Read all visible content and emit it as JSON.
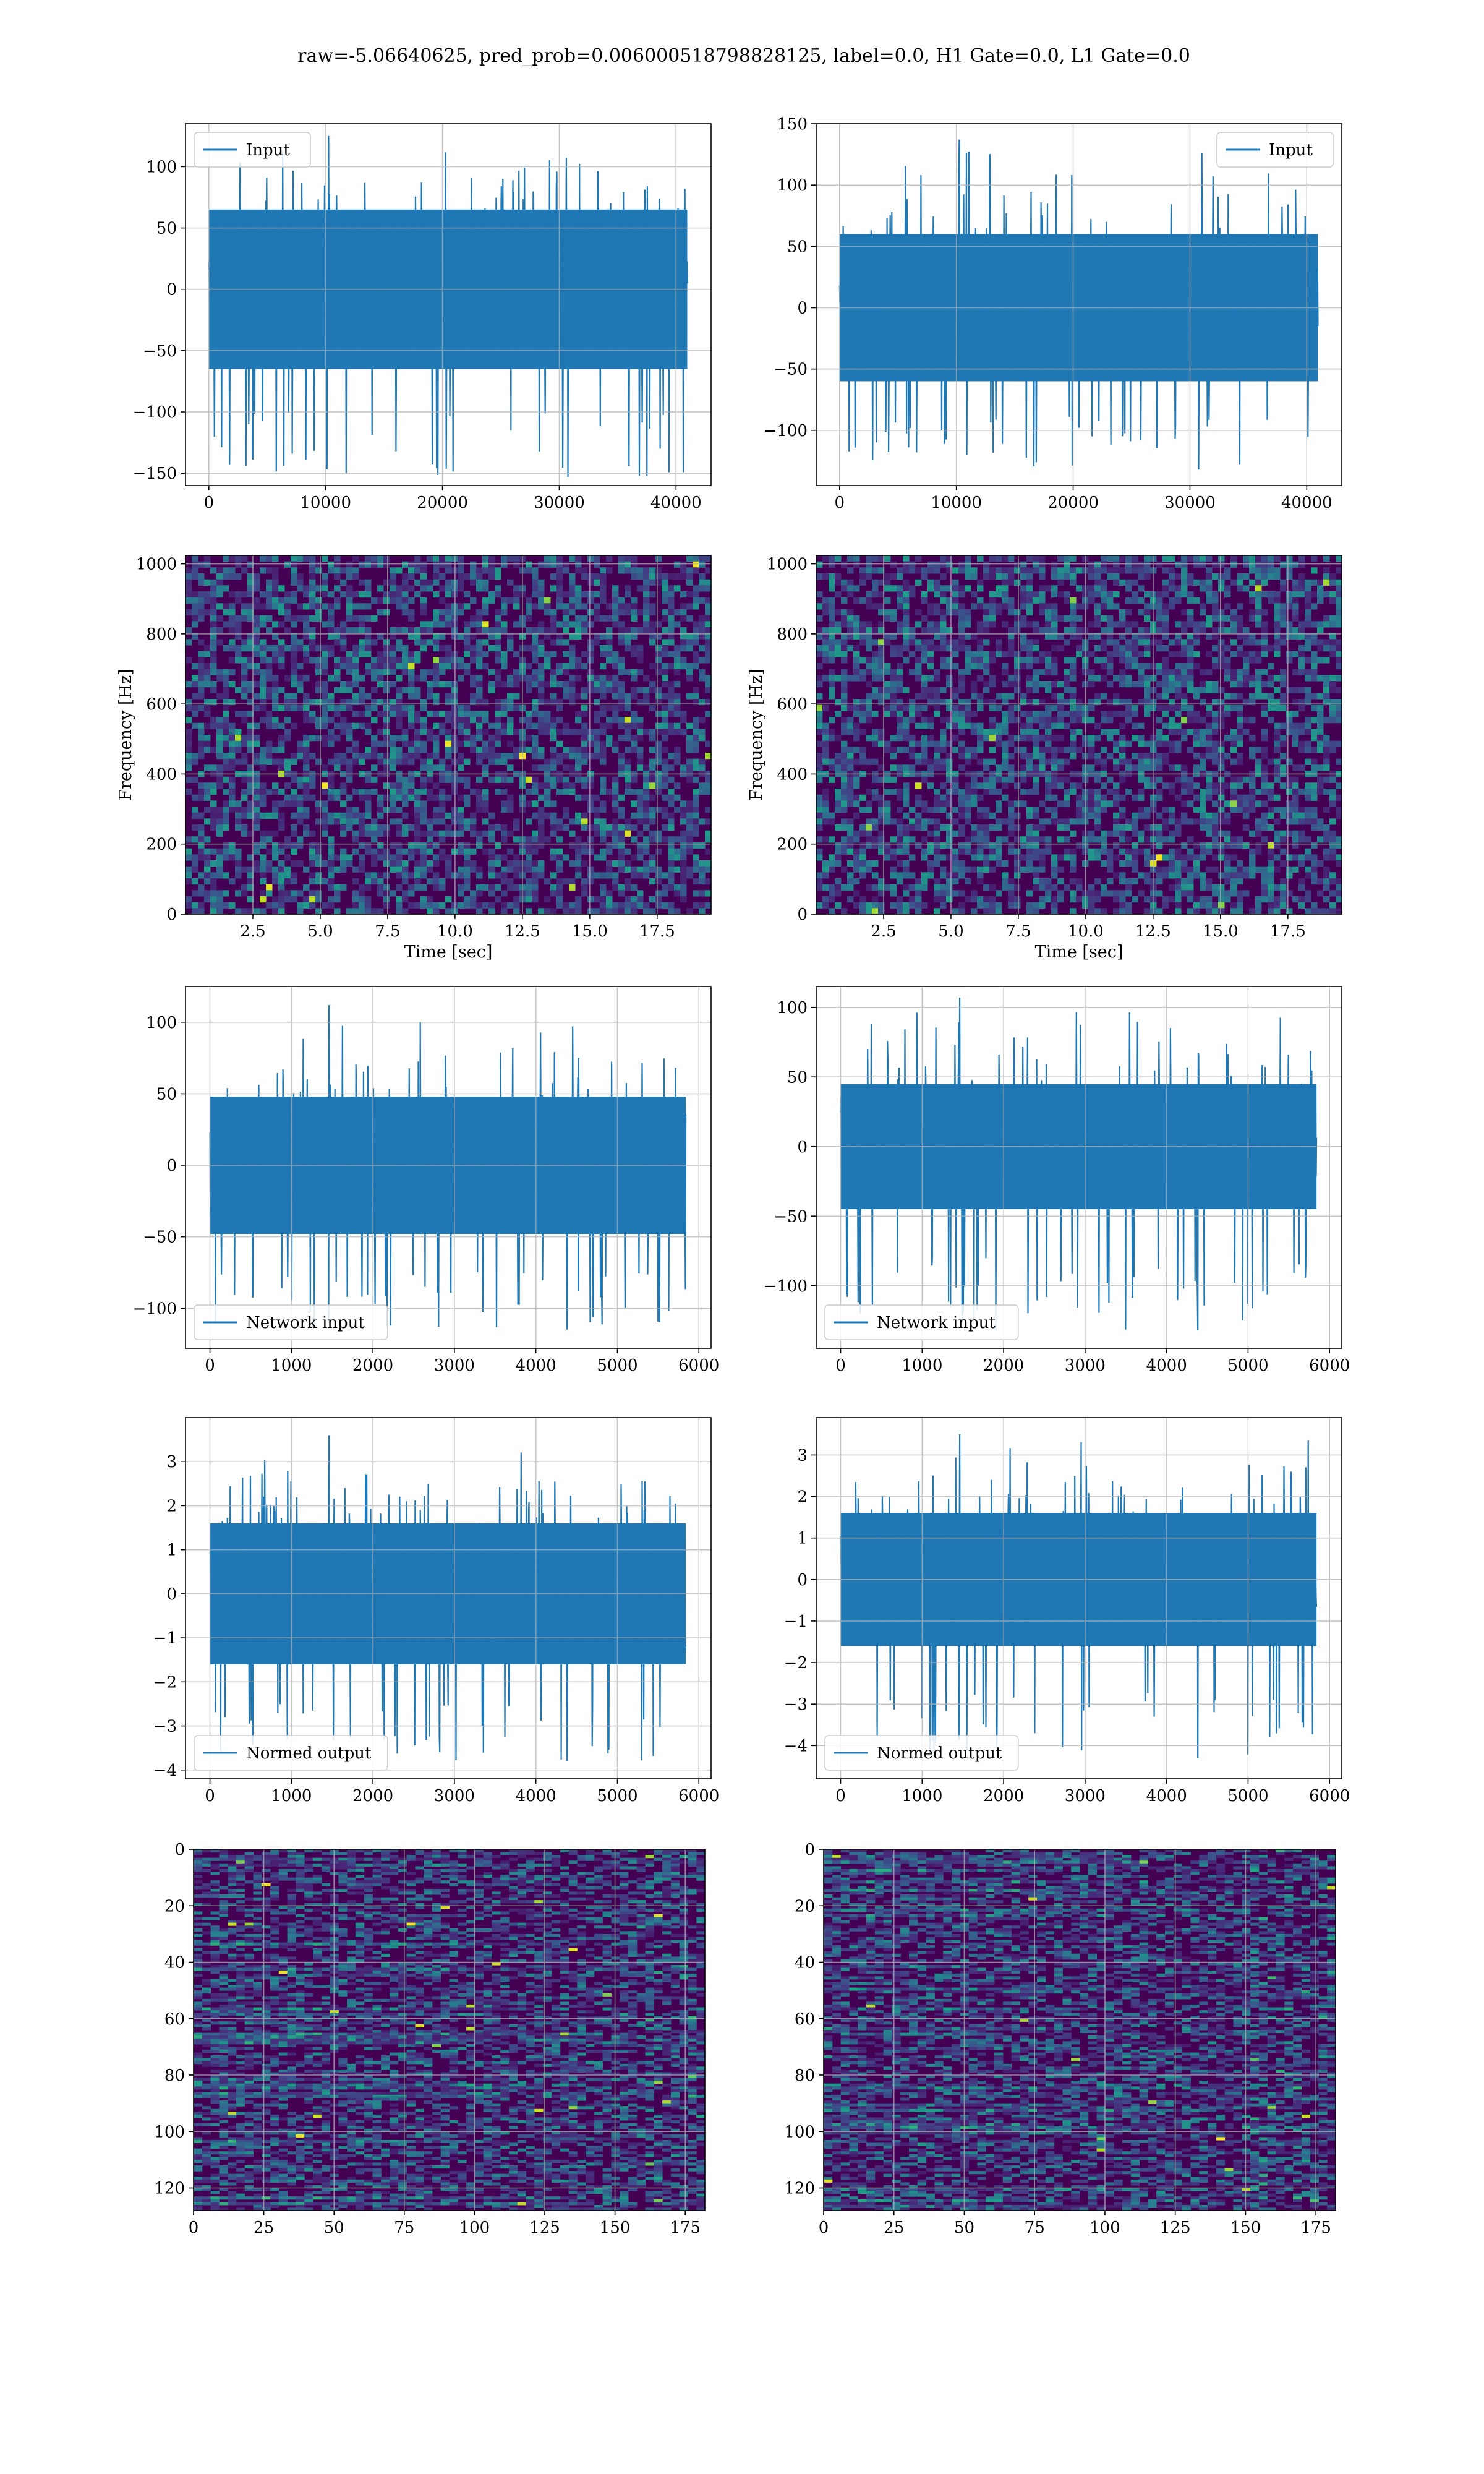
{
  "title": "raw=-5.06640625, pred_prob=0.006000518798828125, label=0.0, H1 Gate=0.0, L1 Gate=0.0",
  "colors": {
    "line": "#1f77b4",
    "grid": "#b0b0b0",
    "viridis_dark": "#440154",
    "viridis_mid": "#31688e",
    "viridis_green": "#35b779",
    "viridis_yellow": "#fde725"
  },
  "chart_data": [
    {
      "type": "line",
      "position": "row1-left",
      "title": "",
      "xlabel": "",
      "ylabel": "",
      "series": [
        {
          "name": "Input",
          "n_samples": 40960,
          "envelope": [
            -65,
            65
          ],
          "peak_max": 125,
          "peak_min": -153
        }
      ],
      "xlim": [
        -2000,
        43000
      ],
      "ylim": [
        -160,
        135
      ],
      "xticks": [
        0,
        10000,
        20000,
        30000,
        40000
      ],
      "yticks": [
        -150,
        -100,
        -50,
        0,
        50,
        100
      ],
      "legend": "top-left",
      "grid": true
    },
    {
      "type": "line",
      "position": "row1-right",
      "title": "",
      "xlabel": "",
      "ylabel": "",
      "series": [
        {
          "name": "Input",
          "n_samples": 40960,
          "envelope": [
            -60,
            60
          ],
          "peak_max": 137,
          "peak_min": -132
        }
      ],
      "xlim": [
        -2000,
        43000
      ],
      "ylim": [
        -145,
        150
      ],
      "xticks": [
        0,
        10000,
        20000,
        30000,
        40000
      ],
      "yticks": [
        -100,
        -50,
        0,
        50,
        100,
        150
      ],
      "legend": "top-right",
      "grid": true
    },
    {
      "type": "heatmap",
      "position": "row2-left",
      "title": "",
      "xlabel": "Time [sec]",
      "ylabel": "Frequency [Hz]",
      "xlim": [
        0,
        19.5
      ],
      "ylim": [
        0,
        1024
      ],
      "xticks": [
        2.5,
        5.0,
        7.5,
        10.0,
        12.5,
        15.0,
        17.5
      ],
      "yticks": [
        0,
        200,
        400,
        600,
        800,
        1000
      ],
      "colormap": "viridis",
      "grid": true
    },
    {
      "type": "heatmap",
      "position": "row2-right",
      "title": "",
      "xlabel": "Time [sec]",
      "ylabel": "Frequency [Hz]",
      "xlim": [
        0,
        19.5
      ],
      "ylim": [
        0,
        1024
      ],
      "xticks": [
        2.5,
        5.0,
        7.5,
        10.0,
        12.5,
        15.0,
        17.5
      ],
      "yticks": [
        0,
        200,
        400,
        600,
        800,
        1000
      ],
      "colormap": "viridis",
      "grid": true
    },
    {
      "type": "line",
      "position": "row3-left",
      "title": "",
      "xlabel": "",
      "ylabel": "",
      "series": [
        {
          "name": "Network input",
          "n_samples": 5840,
          "envelope": [
            -48,
            48
          ],
          "peak_max": 112,
          "peak_min": -115
        }
      ],
      "xlim": [
        -300,
        6150
      ],
      "ylim": [
        -128,
        125
      ],
      "xticks": [
        0,
        1000,
        2000,
        3000,
        4000,
        5000,
        6000
      ],
      "yticks": [
        -100,
        -50,
        0,
        50,
        100
      ],
      "legend": "bottom-left",
      "grid": true
    },
    {
      "type": "line",
      "position": "row3-right",
      "title": "",
      "xlabel": "",
      "ylabel": "",
      "series": [
        {
          "name": "Network input",
          "n_samples": 5840,
          "envelope": [
            -45,
            45
          ],
          "peak_max": 107,
          "peak_min": -132
        }
      ],
      "xlim": [
        -300,
        6150
      ],
      "ylim": [
        -145,
        115
      ],
      "xticks": [
        0,
        1000,
        2000,
        3000,
        4000,
        5000,
        6000
      ],
      "yticks": [
        -100,
        -50,
        0,
        50,
        100
      ],
      "legend": "bottom-left",
      "grid": true
    },
    {
      "type": "line",
      "position": "row4-left",
      "title": "",
      "xlabel": "",
      "ylabel": "",
      "series": [
        {
          "name": "Normed output",
          "n_samples": 5840,
          "envelope": [
            -1.6,
            1.6
          ],
          "peak_max": 3.6,
          "peak_min": -3.8
        }
      ],
      "xlim": [
        -300,
        6150
      ],
      "ylim": [
        -4.2,
        4.0
      ],
      "xticks": [
        0,
        1000,
        2000,
        3000,
        4000,
        5000,
        6000
      ],
      "yticks": [
        -4,
        -3,
        -2,
        -1,
        0,
        1,
        2,
        3
      ],
      "legend": "bottom-left",
      "grid": true
    },
    {
      "type": "line",
      "position": "row4-right",
      "title": "",
      "xlabel": "",
      "ylabel": "",
      "series": [
        {
          "name": "Normed output",
          "n_samples": 5840,
          "envelope": [
            -1.6,
            1.6
          ],
          "peak_max": 3.5,
          "peak_min": -4.3
        }
      ],
      "xlim": [
        -300,
        6150
      ],
      "ylim": [
        -4.8,
        3.9
      ],
      "xticks": [
        0,
        1000,
        2000,
        3000,
        4000,
        5000,
        6000
      ],
      "yticks": [
        -4,
        -3,
        -2,
        -1,
        0,
        1,
        2,
        3
      ],
      "legend": "bottom-left",
      "grid": true
    },
    {
      "type": "heatmap",
      "position": "row5-left",
      "title": "",
      "xlabel": "",
      "ylabel": "",
      "xlim": [
        0,
        182
      ],
      "ylim": [
        128,
        0
      ],
      "xticks": [
        0,
        25,
        50,
        75,
        100,
        125,
        150,
        175
      ],
      "yticks": [
        0,
        20,
        40,
        60,
        80,
        100,
        120
      ],
      "colormap": "viridis",
      "grid": true
    },
    {
      "type": "heatmap",
      "position": "row5-right",
      "title": "",
      "xlabel": "",
      "ylabel": "",
      "xlim": [
        0,
        182
      ],
      "ylim": [
        128,
        0
      ],
      "xticks": [
        0,
        25,
        50,
        75,
        100,
        125,
        150,
        175
      ],
      "yticks": [
        0,
        20,
        40,
        60,
        80,
        100,
        120
      ],
      "colormap": "viridis",
      "grid": true
    }
  ]
}
